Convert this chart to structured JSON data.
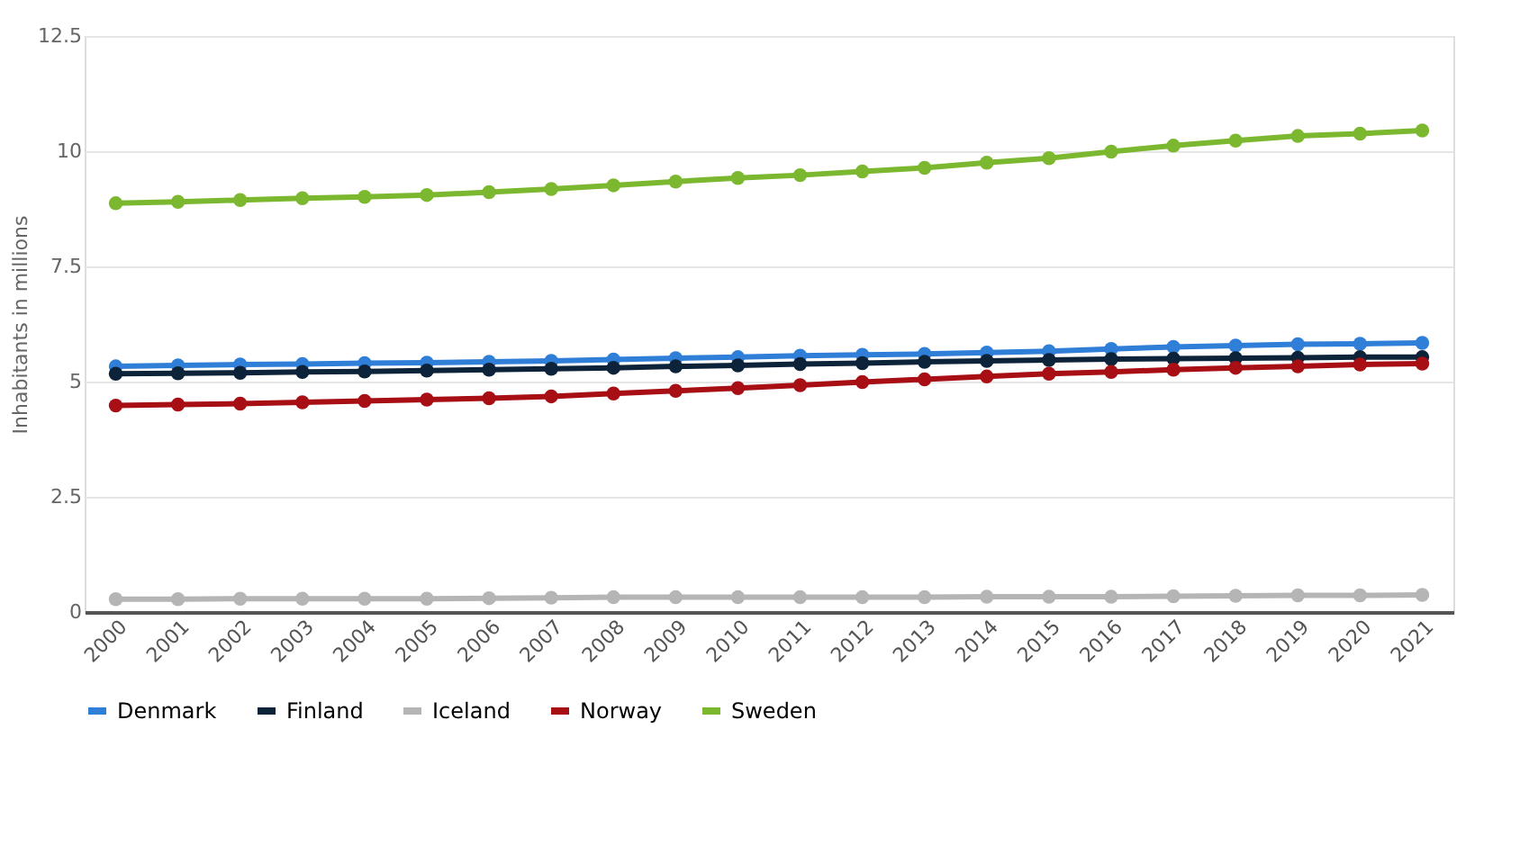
{
  "chart_data": {
    "type": "line",
    "ylabel": "Inhabitants in millions",
    "categories": [
      "2000",
      "2001",
      "2002",
      "2003",
      "2004",
      "2005",
      "2006",
      "2007",
      "2008",
      "2009",
      "2010",
      "2011",
      "2012",
      "2013",
      "2014",
      "2015",
      "2016",
      "2017",
      "2018",
      "2019",
      "2020",
      "2021"
    ],
    "series": [
      {
        "name": "Denmark",
        "color": "#2f7ed8",
        "values": [
          5.33,
          5.35,
          5.37,
          5.38,
          5.4,
          5.41,
          5.43,
          5.45,
          5.48,
          5.51,
          5.53,
          5.56,
          5.58,
          5.6,
          5.63,
          5.66,
          5.71,
          5.75,
          5.78,
          5.81,
          5.82,
          5.84
        ]
      },
      {
        "name": "Finland",
        "color": "#0d233a",
        "values": [
          5.17,
          5.18,
          5.19,
          5.21,
          5.22,
          5.24,
          5.26,
          5.28,
          5.3,
          5.33,
          5.35,
          5.38,
          5.4,
          5.43,
          5.45,
          5.47,
          5.49,
          5.5,
          5.51,
          5.52,
          5.53,
          5.53
        ]
      },
      {
        "name": "Iceland",
        "color": "#b5b5b5",
        "values": [
          0.28,
          0.28,
          0.29,
          0.29,
          0.29,
          0.29,
          0.3,
          0.31,
          0.32,
          0.32,
          0.32,
          0.32,
          0.32,
          0.32,
          0.33,
          0.33,
          0.33,
          0.34,
          0.35,
          0.36,
          0.36,
          0.37
        ]
      },
      {
        "name": "Norway",
        "color": "#a70f14",
        "values": [
          4.48,
          4.5,
          4.52,
          4.55,
          4.58,
          4.61,
          4.64,
          4.68,
          4.74,
          4.8,
          4.86,
          4.92,
          4.99,
          5.05,
          5.11,
          5.17,
          5.21,
          5.26,
          5.3,
          5.33,
          5.37,
          5.39
        ]
      },
      {
        "name": "Sweden",
        "color": "#7cb82f",
        "values": [
          8.87,
          8.9,
          8.94,
          8.98,
          9.01,
          9.05,
          9.11,
          9.18,
          9.26,
          9.34,
          9.42,
          9.48,
          9.56,
          9.64,
          9.75,
          9.85,
          9.99,
          10.12,
          10.23,
          10.33,
          10.38,
          10.45
        ]
      }
    ],
    "ylim": [
      0,
      12.5
    ],
    "yticks": [
      0,
      2.5,
      5,
      7.5,
      10,
      12.5
    ],
    "grid": "y",
    "legend": "bottom",
    "marker": "circle",
    "line_style": "solid"
  }
}
